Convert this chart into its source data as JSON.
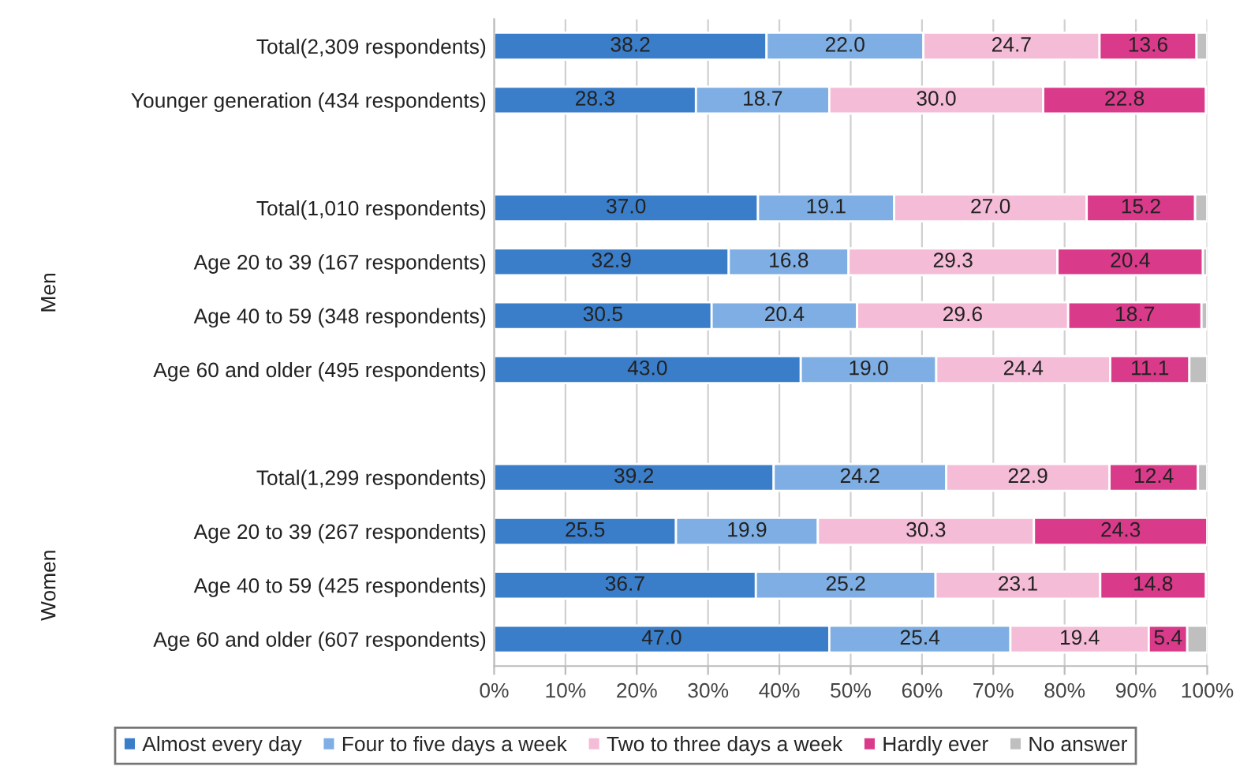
{
  "chart_data": {
    "type": "bar",
    "orientation": "horizontal",
    "stacked": true,
    "categories": [
      "Total(2,309 respondents)",
      "Younger generation (434 respondents)",
      null,
      "Total(1,010 respondents)",
      "Age 20 to 39 (167 respondents)",
      "Age 40 to 59 (348 respondents)",
      "Age 60 and older (495 respondents)",
      null,
      "Total(1,299 respondents)",
      "Age 20 to 39 (267 respondents)",
      "Age 40 to 59 (425 respondents)",
      "Age 60 and older (607 respondents)"
    ],
    "series": [
      {
        "name": "Almost every day",
        "color": "#3a7dc9",
        "values": [
          38.2,
          28.3,
          null,
          37.0,
          32.9,
          30.5,
          43.0,
          null,
          39.2,
          25.5,
          36.7,
          47.0
        ],
        "value_labels": [
          "38.2",
          "28.3",
          null,
          "37.0",
          "32.9",
          "30.5",
          "43.0",
          null,
          "39.2",
          "25.5",
          "36.7",
          "47.0"
        ]
      },
      {
        "name": "Four to five days a week",
        "color": "#7eaee3",
        "values": [
          22.0,
          18.7,
          null,
          19.1,
          16.8,
          20.4,
          19.0,
          null,
          24.2,
          19.9,
          25.2,
          25.4
        ],
        "value_labels": [
          "22.0",
          "18.7",
          null,
          "19.1",
          "16.8",
          "20.4",
          "19.0",
          null,
          "24.2",
          "19.9",
          "25.2",
          "25.4"
        ]
      },
      {
        "name": "Two to three days a week",
        "color": "#f5bcd7",
        "values": [
          24.7,
          30.0,
          null,
          27.0,
          29.3,
          29.6,
          24.4,
          null,
          22.9,
          30.3,
          23.1,
          19.4
        ],
        "value_labels": [
          "24.7",
          "30.0",
          null,
          "27.0",
          "29.3",
          "29.6",
          "24.4",
          null,
          "22.9",
          "30.3",
          "23.1",
          "19.4"
        ]
      },
      {
        "name": "Hardly ever",
        "color": "#d93a8a",
        "values": [
          13.6,
          22.8,
          null,
          15.2,
          20.4,
          18.7,
          11.1,
          null,
          12.4,
          24.3,
          14.8,
          5.4
        ],
        "value_labels": [
          "13.6",
          "22.8",
          null,
          "15.2",
          "20.4",
          "18.7",
          "11.1",
          null,
          "12.4",
          "24.3",
          "14.8",
          "5.4"
        ]
      },
      {
        "name": "No answer",
        "color": "#bfbfbf",
        "values": [
          1.5,
          null,
          null,
          1.7,
          0.6,
          0.8,
          2.5,
          null,
          1.3,
          null,
          null,
          2.8
        ]
      }
    ],
    "xlim": [
      0,
      100
    ],
    "xticks": [
      {
        "value": 0,
        "label": "0%"
      },
      {
        "value": 10,
        "label": "10%"
      },
      {
        "value": 20,
        "label": "20%"
      },
      {
        "value": 30,
        "label": "30%"
      },
      {
        "value": 40,
        "label": "40%"
      },
      {
        "value": 50,
        "label": "50%"
      },
      {
        "value": 60,
        "label": "60%"
      },
      {
        "value": 70,
        "label": "70%"
      },
      {
        "value": 80,
        "label": "80%"
      },
      {
        "value": 90,
        "label": "90%"
      },
      {
        "value": 100,
        "label": "100%"
      }
    ],
    "grid": "x",
    "legend": "bottom",
    "annotations": [
      "Men",
      "Women"
    ]
  }
}
